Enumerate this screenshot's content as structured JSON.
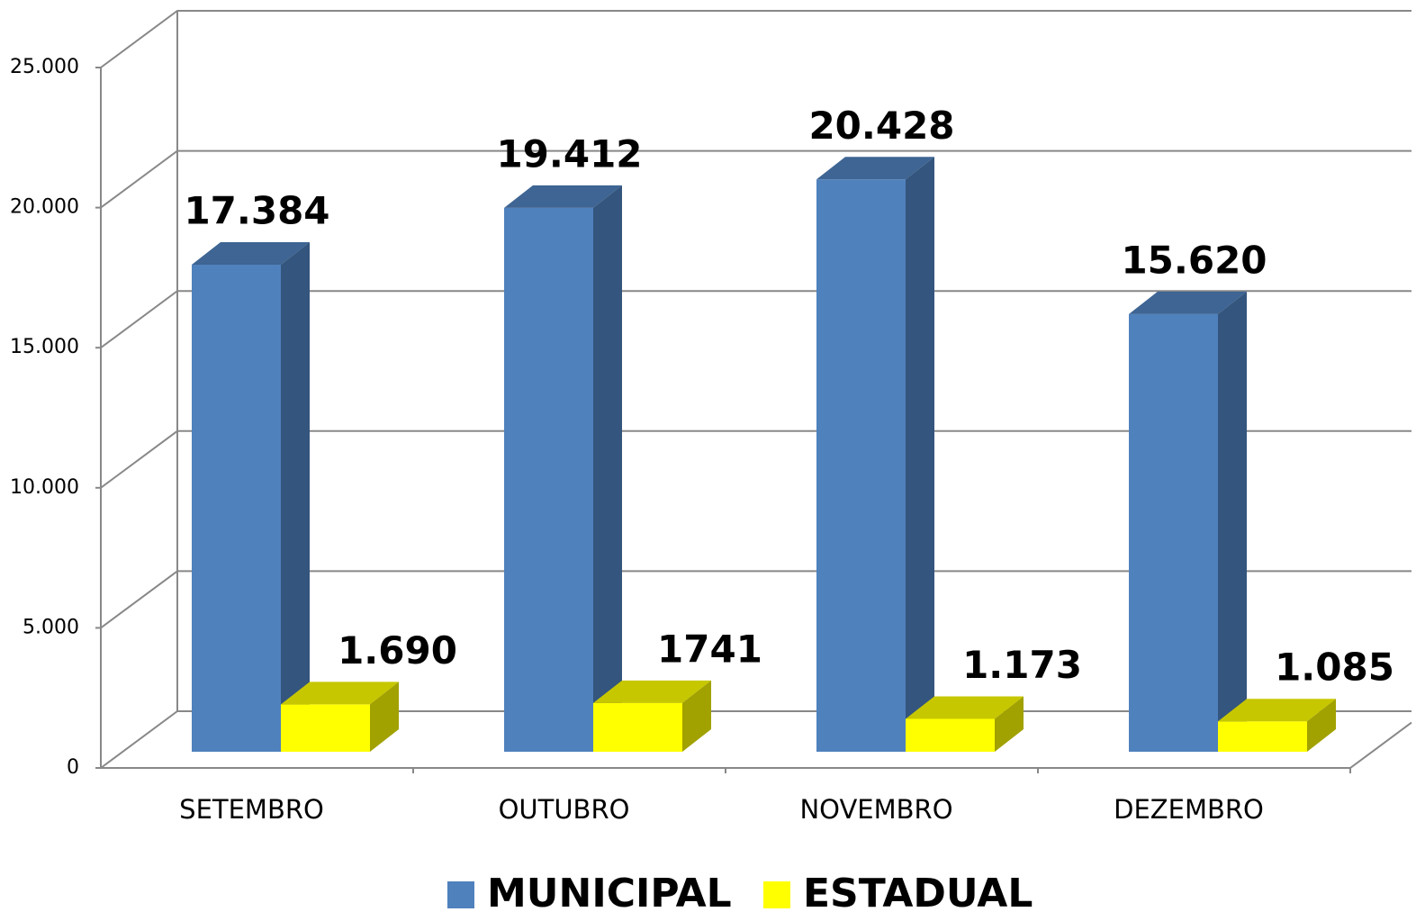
{
  "chart_data": {
    "type": "bar3d",
    "categories": [
      "SETEMBRO",
      "OUTUBRO",
      "NOVEMBRO",
      "DEZEMBRO"
    ],
    "series": [
      {
        "name": "MUNICIPAL",
        "color": "#4f81bd",
        "values": [
          17384,
          19412,
          20428,
          15620
        ],
        "value_labels": [
          "17.384",
          "19.412",
          "20.428",
          "15.620"
        ]
      },
      {
        "name": "ESTADUAL",
        "color": "#ffff00",
        "values": [
          1690,
          1741,
          1173,
          1085
        ],
        "value_labels": [
          "1.690",
          "1741",
          "1.173",
          "1.085"
        ]
      }
    ],
    "ylim": [
      0,
      25000
    ],
    "yticks": [
      0,
      {
        "value": 5000,
        "label": "5.000"
      },
      {
        "value": 10000,
        "label": "10.000"
      },
      {
        "value": 15000,
        "label": "15.000"
      },
      {
        "value": 20000,
        "label": "20.000"
      },
      {
        "value": 25000,
        "label": "25.000"
      }
    ],
    "grid": true,
    "legend": "bottom"
  }
}
